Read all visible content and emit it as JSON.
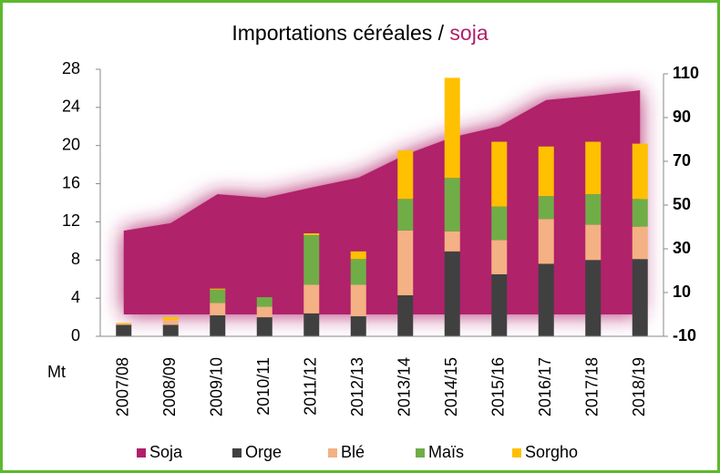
{
  "chart_data": {
    "type": "bar",
    "stacked": true,
    "title": "Importations céréales /",
    "title_highlight": "soja",
    "title_highlight_color": "#b0206a",
    "y_label": "Mt",
    "categories": [
      "2007/08",
      "2008/09",
      "2009/10",
      "2010/11",
      "2011/12",
      "2012/13",
      "2013/14",
      "2014/15",
      "2015/16",
      "2016/17",
      "2017/18",
      "2018/19"
    ],
    "series": [
      {
        "name": "Soja",
        "type": "area",
        "axis": "y2",
        "color": "#b0206a",
        "values": [
          38.3,
          41.7,
          55,
          53.3,
          58,
          62.5,
          73,
          81,
          86,
          98,
          100,
          102.5
        ]
      },
      {
        "name": "Orge",
        "color": "#404040",
        "values": [
          1.2,
          1.2,
          2.2,
          2.0,
          2.4,
          2.1,
          4.3,
          8.9,
          6.5,
          7.6,
          8.0,
          8.1
        ]
      },
      {
        "name": "Blé",
        "color": "#f4b183",
        "values": [
          0.1,
          0.5,
          1.3,
          1.1,
          3.0,
          3.3,
          6.8,
          2.1,
          3.6,
          4.7,
          3.7,
          3.4
        ]
      },
      {
        "name": "Maïs",
        "color": "#70ad47",
        "values": [
          0,
          0,
          1.4,
          1.0,
          5.2,
          2.7,
          3.3,
          5.6,
          3.5,
          2.4,
          3.2,
          2.9
        ]
      },
      {
        "name": "Sorgho",
        "color": "#ffc000",
        "values": [
          0.1,
          0.3,
          0.1,
          0,
          0.2,
          0.8,
          5.1,
          10.5,
          6.8,
          5.2,
          5.5,
          5.8
        ]
      }
    ],
    "ylim": [
      0,
      28
    ],
    "yticks": [
      0,
      4,
      8,
      12,
      16,
      20,
      24,
      28
    ],
    "y2lim": [
      -10,
      110
    ],
    "y2ticks": [
      -10,
      10,
      30,
      50,
      70,
      90,
      110
    ],
    "y2_color": "#b0206a",
    "legend": "bottom",
    "grid": false
  }
}
